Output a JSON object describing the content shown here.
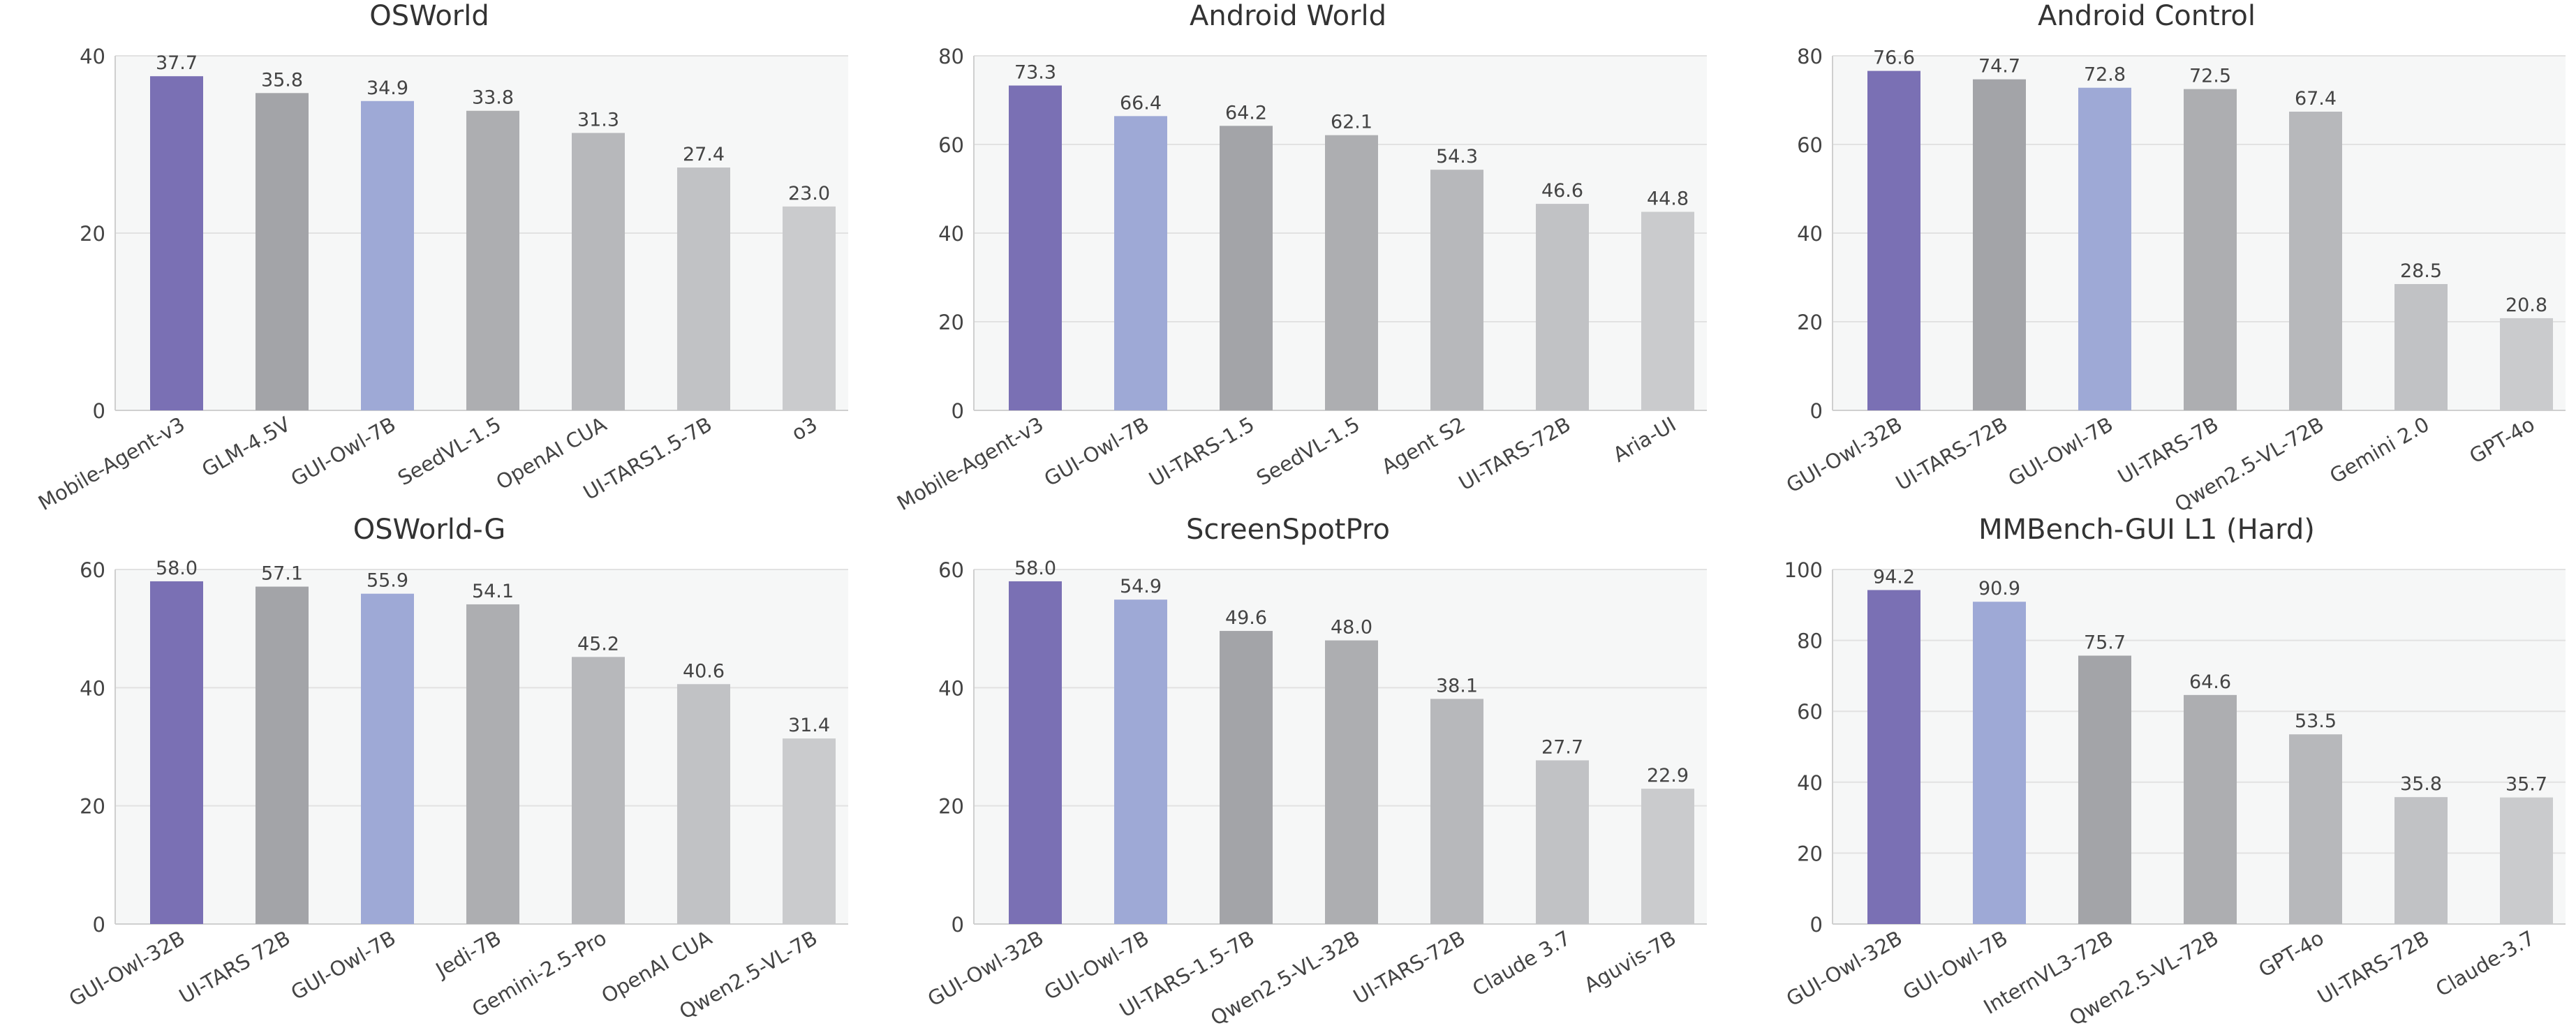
{
  "colors": {
    "highlight_dark": "#7a70b4",
    "highlight_light": "#9ea9d6",
    "gray_bars": [
      "#a3a4a8",
      "#adaeb1",
      "#b7b8bb",
      "#c1c2c5",
      "#cacbcd"
    ],
    "plot_background": "#f6f7f7",
    "grid": "#e2e2e2",
    "text": "#444444"
  },
  "chart_data": [
    {
      "type": "bar",
      "title": "OSWorld",
      "categories": [
        "Mobile-Agent-v3",
        "GLM-4.5V",
        "GUI-Owl-7B",
        "SeedVL-1.5",
        "OpenAI CUA",
        "UI-TARS1.5-7B",
        "o3"
      ],
      "values": [
        37.7,
        35.8,
        34.9,
        33.8,
        31.3,
        27.4,
        23.0
      ],
      "value_labels": [
        "37.7",
        "35.8",
        "34.9",
        "33.8",
        "31.3",
        "27.4",
        "23.0"
      ],
      "ylim": [
        0,
        40
      ],
      "yticks": [
        0,
        20,
        40
      ],
      "grid": true,
      "bar_colors": [
        "highlight_dark",
        "gray",
        "highlight_light",
        "gray",
        "gray",
        "gray",
        "gray"
      ]
    },
    {
      "type": "bar",
      "title": "Android World",
      "categories": [
        "Mobile-Agent-v3",
        "GUI-Owl-7B",
        "UI-TARS-1.5",
        "SeedVL-1.5",
        "Agent S2",
        "UI-TARS-72B",
        "Aria-UI"
      ],
      "values": [
        73.3,
        66.4,
        64.2,
        62.1,
        54.3,
        46.6,
        44.8
      ],
      "value_labels": [
        "73.3",
        "66.4",
        "64.2",
        "62.1",
        "54.3",
        "46.6",
        "44.8"
      ],
      "ylim": [
        0,
        80
      ],
      "yticks": [
        0,
        20,
        40,
        60,
        80
      ],
      "grid": true,
      "bar_colors": [
        "highlight_dark",
        "highlight_light",
        "gray",
        "gray",
        "gray",
        "gray",
        "gray"
      ]
    },
    {
      "type": "bar",
      "title": "Android Control",
      "categories": [
        "GUI-Owl-32B",
        "UI-TARS-72B",
        "GUI-Owl-7B",
        "UI-TARS-7B",
        "Qwen2.5-VL-72B",
        "Gemini 2.0",
        "GPT-4o"
      ],
      "values": [
        76.6,
        74.7,
        72.8,
        72.5,
        67.4,
        28.5,
        20.8
      ],
      "value_labels": [
        "76.6",
        "74.7",
        "72.8",
        "72.5",
        "67.4",
        "28.5",
        "20.8"
      ],
      "ylim": [
        0,
        80
      ],
      "yticks": [
        0,
        20,
        40,
        60,
        80
      ],
      "grid": true,
      "bar_colors": [
        "highlight_dark",
        "gray",
        "highlight_light",
        "gray",
        "gray",
        "gray",
        "gray"
      ]
    },
    {
      "type": "bar",
      "title": "OSWorld-G",
      "categories": [
        "GUI-Owl-32B",
        "UI-TARS 72B",
        "GUI-Owl-7B",
        "Jedi-7B",
        "Gemini-2.5-Pro",
        "OpenAI CUA",
        "Qwen2.5-VL-7B"
      ],
      "values": [
        58.0,
        57.1,
        55.9,
        54.1,
        45.2,
        40.6,
        31.4
      ],
      "value_labels": [
        "58.0",
        "57.1",
        "55.9",
        "54.1",
        "45.2",
        "40.6",
        "31.4"
      ],
      "ylim": [
        0,
        60
      ],
      "yticks": [
        0,
        20,
        40,
        60
      ],
      "grid": true,
      "bar_colors": [
        "highlight_dark",
        "gray",
        "highlight_light",
        "gray",
        "gray",
        "gray",
        "gray"
      ]
    },
    {
      "type": "bar",
      "title": "ScreenSpotPro",
      "categories": [
        "GUI-Owl-32B",
        "GUI-Owl-7B",
        "UI-TARS-1.5-7B",
        "Qwen2.5-VL-32B",
        "UI-TARS-72B",
        "Claude 3.7",
        "Aguvis-7B"
      ],
      "values": [
        58.0,
        54.9,
        49.6,
        48.0,
        38.1,
        27.7,
        22.9
      ],
      "value_labels": [
        "58.0",
        "54.9",
        "49.6",
        "48.0",
        "38.1",
        "27.7",
        "22.9"
      ],
      "ylim": [
        0,
        60
      ],
      "yticks": [
        0,
        20,
        40,
        60
      ],
      "grid": true,
      "bar_colors": [
        "highlight_dark",
        "highlight_light",
        "gray",
        "gray",
        "gray",
        "gray",
        "gray"
      ]
    },
    {
      "type": "bar",
      "title": "MMBench-GUI L1 (Hard)",
      "categories": [
        "GUI-Owl-32B",
        "GUI-Owl-7B",
        "InternVL3-72B",
        "Qwen2.5-VL-72B",
        "GPT-4o",
        "UI-TARS-72B",
        "Claude-3.7"
      ],
      "values": [
        94.2,
        90.9,
        75.7,
        64.6,
        53.5,
        35.8,
        35.7
      ],
      "value_labels": [
        "94.2",
        "90.9",
        "75.7",
        "64.6",
        "53.5",
        "35.8",
        "35.7"
      ],
      "ylim": [
        0,
        100
      ],
      "yticks": [
        0,
        20,
        40,
        60,
        80,
        100
      ],
      "grid": true,
      "bar_colors": [
        "highlight_dark",
        "highlight_light",
        "gray",
        "gray",
        "gray",
        "gray",
        "gray"
      ]
    }
  ]
}
